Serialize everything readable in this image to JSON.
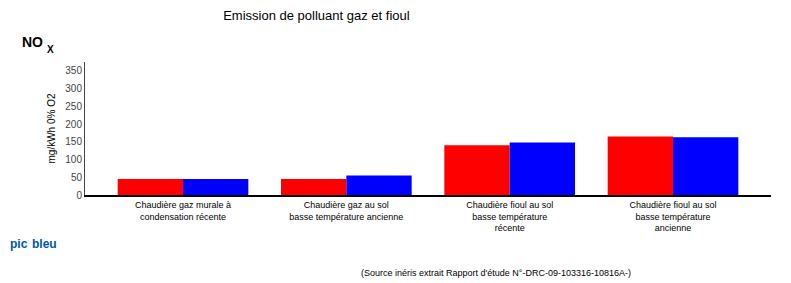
{
  "chart_data": {
    "type": "bar",
    "title": "Emission de polluant gaz et fioul",
    "ylabel": "mg/kWh 0% O2",
    "categories": [
      "Chaudière gaz murale à\ncondensation récente",
      "Chaudière gaz au sol\nbasse température ancienne",
      "Chaudière fioul au sol\nbasse température\nrécente",
      "Chaudière fioul au sol\nbasse température\nancienne"
    ],
    "series": [
      {
        "color": "#FF0000",
        "values": [
          45,
          45,
          140,
          165
        ]
      },
      {
        "color": "#0000FF",
        "values": [
          45,
          55,
          148,
          163
        ]
      }
    ],
    "ylim": [
      0,
      375
    ],
    "yticks": [
      0,
      50,
      100,
      150,
      200,
      250,
      300,
      350
    ],
    "grid": false,
    "annotations": [
      {
        "text": "NO"
      },
      {
        "text": "X"
      },
      {
        "text": "(Source inéris extrait Rapport d'étude N°-DRC-09-103316-10816A-)"
      },
      {
        "text": "pic",
        "color": "#0055AA"
      },
      {
        "text": "bleu",
        "color": "#0055AA"
      }
    ]
  }
}
